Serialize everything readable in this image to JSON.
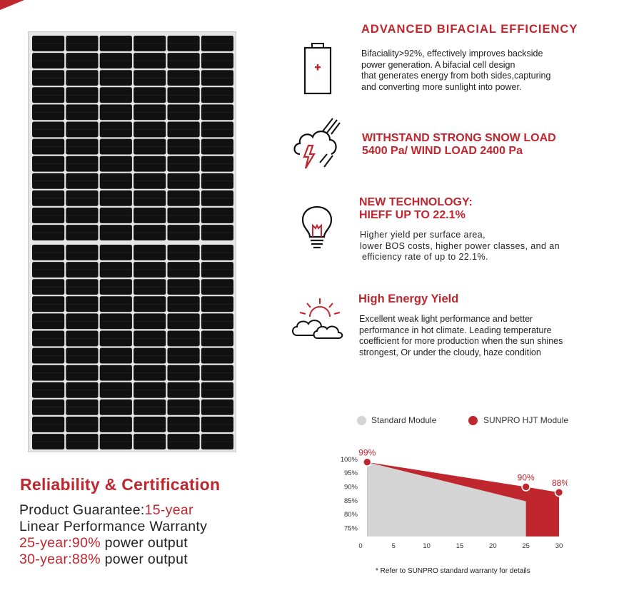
{
  "colors": {
    "accent": "#c0262e",
    "standard": "#d4d4d4",
    "panel_cell": "#111111"
  },
  "features": [
    {
      "icon": "battery-icon",
      "title": "ADVANCED BIFACIAL EFFICIENCY",
      "lines": [
        "Bifaciality>92%, effectively improves backside",
        "power generation. A bifacial cell design",
        "that generates energy from both sides,capturing",
        "and converting more sunlight into power."
      ]
    },
    {
      "icon": "storm-cloud-icon",
      "title_lines": [
        "WITHSTAND STRONG SNOW LOAD",
        "5400 Pa/ WIND LOAD 2400 Pa"
      ]
    },
    {
      "icon": "light-bulb-icon",
      "title_lines": [
        "NEW TECHNOLOGY:",
        "HIEFF UP TO 22.1%"
      ],
      "lines": [
        "Higher yield per surface area,",
        "lower BOS costs, higher power classes, and an",
        "efficiency rate of up to 22.1%."
      ]
    },
    {
      "icon": "sun-cloud-icon",
      "title": "High Energy Yield",
      "lines": [
        "Excellent weak light performance and better",
        "performance in hot climate. Leading temperature",
        "coefficient for more production when the sun shines",
        "strongest, Or under the cloudy, haze condition"
      ]
    }
  ],
  "reliability": {
    "title": "Reliability & Certification",
    "guarantee_label": "Product Guarantee:",
    "guarantee_value": "15-year",
    "warranty_label": "Linear Performance Warranty",
    "line25_value": "25-year:90%",
    "line25_rest": " power output",
    "line30_value": "30-year:88%",
    "line30_rest": " power output"
  },
  "chart_data": {
    "type": "area",
    "legend": [
      "Standard Module",
      "SUNPRO HJT Module"
    ],
    "x": [
      1,
      25,
      30
    ],
    "series": [
      {
        "name": "Standard Module",
        "values": [
          99,
          84.8,
          84.8
        ]
      },
      {
        "name": "SUNPRO HJT Module",
        "values": [
          99,
          90,
          88
        ]
      }
    ],
    "point_labels": [
      "99%",
      "90%",
      "88%"
    ],
    "yticks": [
      "100%",
      "95%",
      "90%",
      "85%",
      "80%",
      "75%"
    ],
    "ytick_values": [
      100,
      95,
      90,
      85,
      80,
      75
    ],
    "xticks": [
      0,
      5,
      10,
      15,
      20,
      25,
      30
    ],
    "ylim": [
      72,
      101
    ],
    "xlim": [
      0,
      30
    ],
    "legend_position": "top"
  },
  "footnote": "* Refer to SUNPRO standard warranty for details"
}
